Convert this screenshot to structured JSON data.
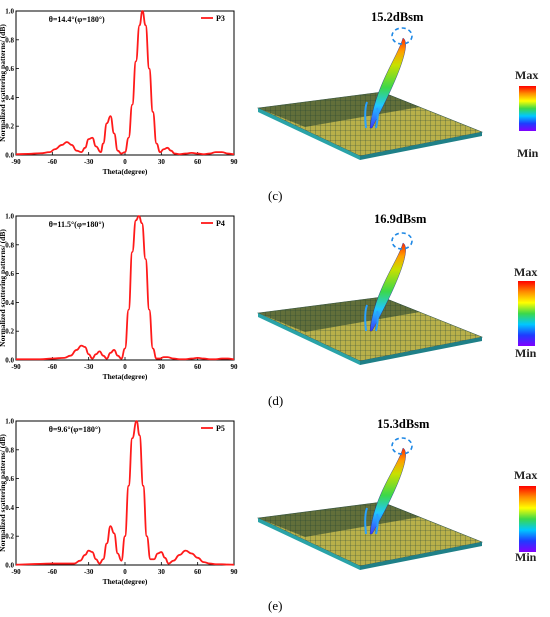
{
  "panels": [
    {
      "id": "c",
      "panel_label": "(c)",
      "rcs_label": "15.2dBsm",
      "colorbar": {
        "max_label": "Max",
        "min_label": "Min"
      }
    },
    {
      "id": "d",
      "panel_label": "(d)",
      "rcs_label": "16.9dBsm",
      "colorbar": {
        "max_label": "Max",
        "min_label": "Min"
      }
    },
    {
      "id": "e",
      "panel_label": "(e)",
      "rcs_label": "15.3dBsm",
      "colorbar": {
        "max_label": "Max",
        "min_label": "Min"
      }
    }
  ],
  "chart_data": [
    {
      "type": "line",
      "annotation": "θ=14.4°(φ=180°)",
      "xlabel": "Theta(degree)",
      "ylabel": "Normalized scattering patterns/ (dB)",
      "xlim": [
        -90,
        90
      ],
      "ylim": [
        0,
        1
      ],
      "xticks": [
        -90,
        -60,
        -30,
        0,
        30,
        60,
        90
      ],
      "yticks": [
        0.0,
        0.2,
        0.4,
        0.6,
        0.8,
        1.0
      ],
      "xtick_labels": [
        "-90",
        "-60",
        "-30",
        "0",
        "30",
        "60",
        "90"
      ],
      "ytick_labels": [
        "0.0",
        "0.2",
        "0.4",
        "0.6",
        "0.8",
        "1.0"
      ],
      "legend_position": "top-right",
      "color": "#ff1a1a",
      "series": [
        {
          "name": "P3",
          "x": [
            -90,
            -80,
            -70,
            -62,
            -58,
            -52,
            -48,
            -44,
            -40,
            -36,
            -33,
            -30,
            -27,
            -24,
            -20,
            -18,
            -15,
            -12,
            -9,
            -6,
            -3,
            0,
            3,
            6,
            9,
            12,
            14.4,
            17,
            20,
            23,
            26,
            29,
            32,
            35,
            38,
            41,
            45,
            50,
            55,
            60,
            65,
            70,
            75,
            80,
            85,
            90
          ],
          "y": [
            0.005,
            0.008,
            0.012,
            0.02,
            0.04,
            0.07,
            0.09,
            0.07,
            0.03,
            0.02,
            0.05,
            0.11,
            0.12,
            0.06,
            0.02,
            0.08,
            0.22,
            0.27,
            0.15,
            0.03,
            0.01,
            0.02,
            0.12,
            0.35,
            0.65,
            0.9,
            1.0,
            0.9,
            0.6,
            0.3,
            0.08,
            0.02,
            0.04,
            0.05,
            0.03,
            0.01,
            0.005,
            0.01,
            0.015,
            0.01,
            0.005,
            0.01,
            0.02,
            0.02,
            0.01,
            0.005
          ]
        }
      ]
    },
    {
      "type": "line",
      "annotation": "θ=11.5°(φ=180°)",
      "xlabel": "Theta(degree)",
      "ylabel": "Normalized scattering patterns/ (dB)",
      "xlim": [
        -90,
        90
      ],
      "ylim": [
        0,
        1
      ],
      "xticks": [
        -90,
        -60,
        -30,
        0,
        30,
        60,
        90
      ],
      "yticks": [
        0.0,
        0.2,
        0.4,
        0.6,
        0.8,
        1.0
      ],
      "xtick_labels": [
        "-90",
        "-60",
        "-30",
        "0",
        "30",
        "60",
        "90"
      ],
      "ytick_labels": [
        "0.0",
        "0.2",
        "0.4",
        "0.6",
        "0.8",
        "1.0"
      ],
      "legend_position": "top-right",
      "color": "#ff1a1a",
      "series": [
        {
          "name": "P4",
          "x": [
            -90,
            -80,
            -70,
            -60,
            -50,
            -45,
            -40,
            -36,
            -33,
            -30,
            -27,
            -24,
            -21,
            -18,
            -15,
            -12,
            -9,
            -6,
            -3,
            0,
            3,
            6,
            9,
            11.5,
            14,
            17,
            20,
            23,
            26,
            29,
            32,
            35,
            40,
            45,
            50,
            55,
            60,
            65,
            70,
            75,
            80,
            85,
            90
          ],
          "y": [
            0.005,
            0.005,
            0.005,
            0.01,
            0.015,
            0.03,
            0.07,
            0.1,
            0.09,
            0.04,
            0.01,
            0.04,
            0.06,
            0.03,
            0.01,
            0.05,
            0.07,
            0.03,
            0.01,
            0.08,
            0.35,
            0.75,
            0.97,
            1.0,
            0.95,
            0.7,
            0.35,
            0.08,
            0.01,
            0.01,
            0.02,
            0.02,
            0.01,
            0.005,
            0.005,
            0.01,
            0.015,
            0.01,
            0.005,
            0.005,
            0.01,
            0.01,
            0.005
          ]
        }
      ]
    },
    {
      "type": "line",
      "annotation": "θ=9.6°(φ=180°)",
      "xlabel": "Theta(degree)",
      "ylabel": "Normalized scattering patterns/ (dB)",
      "xlim": [
        -90,
        90
      ],
      "ylim": [
        0,
        1
      ],
      "xticks": [
        -90,
        -60,
        -30,
        0,
        30,
        60,
        90
      ],
      "yticks": [
        0.0,
        0.2,
        0.4,
        0.6,
        0.8,
        1.0
      ],
      "xtick_labels": [
        "-90",
        "-60",
        "-30",
        "0",
        "30",
        "60",
        "90"
      ],
      "ytick_labels": [
        "0.0",
        "0.2",
        "0.4",
        "0.6",
        "0.8",
        "1.0"
      ],
      "legend_position": "top-right",
      "color": "#ff1a1a",
      "series": [
        {
          "name": "P5",
          "x": [
            -90,
            -80,
            -70,
            -60,
            -50,
            -42,
            -37,
            -33,
            -30,
            -27,
            -24,
            -21,
            -18,
            -15,
            -12,
            -9,
            -6,
            -3,
            0,
            3,
            6,
            9.6,
            12,
            15,
            18,
            21,
            24,
            27,
            30,
            33,
            36,
            40,
            45,
            50,
            55,
            60,
            65,
            70,
            75,
            80,
            85,
            90
          ],
          "y": [
            0.002,
            0.005,
            0.008,
            0.01,
            0.01,
            0.01,
            0.03,
            0.07,
            0.1,
            0.09,
            0.04,
            0.01,
            0.04,
            0.15,
            0.27,
            0.22,
            0.08,
            0.03,
            0.2,
            0.55,
            0.88,
            1.0,
            0.9,
            0.55,
            0.2,
            0.04,
            0.04,
            0.08,
            0.09,
            0.05,
            0.01,
            0.03,
            0.07,
            0.1,
            0.08,
            0.05,
            0.02,
            0.01,
            0.005,
            0.005,
            0.003,
            0.002
          ]
        }
      ]
    }
  ]
}
